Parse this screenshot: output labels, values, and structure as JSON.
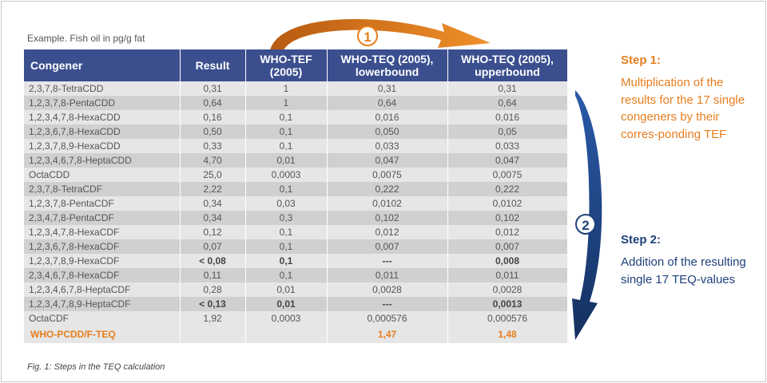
{
  "caption_top": "Example. Fish oil in pg/g fat",
  "table": {
    "headers": [
      "Congener",
      "Result",
      "WHO-TEF\n(2005)",
      "WHO-TEQ (2005),\nlowerbound",
      "WHO-TEQ (2005),\nupperbound"
    ],
    "rows": [
      {
        "congener": "2,3,7,8-TetraCDD",
        "result": "0,31",
        "tef": "1",
        "lower": "0,31",
        "upper": "0,31",
        "bold": false
      },
      {
        "congener": "1,2,3,7,8-PentaCDD",
        "result": "0,64",
        "tef": "1",
        "lower": "0,64",
        "upper": "0,64",
        "bold": false
      },
      {
        "congener": "1,2,3,4,7,8-HexaCDD",
        "result": "0,16",
        "tef": "0,1",
        "lower": "0,016",
        "upper": "0,016",
        "bold": false
      },
      {
        "congener": "1,2,3,6,7,8-HexaCDD",
        "result": "0,50",
        "tef": "0,1",
        "lower": "0,050",
        "upper": "0,05",
        "bold": false
      },
      {
        "congener": "1,2,3,7,8,9-HexaCDD",
        "result": "0,33",
        "tef": "0,1",
        "lower": "0,033",
        "upper": "0,033",
        "bold": false
      },
      {
        "congener": "1,2,3,4,6,7,8-HeptaCDD",
        "result": "4,70",
        "tef": "0,01",
        "lower": "0,047",
        "upper": "0,047",
        "bold": false
      },
      {
        "congener": "OctaCDD",
        "result": "25,0",
        "tef": "0,0003",
        "lower": "0,0075",
        "upper": "0,0075",
        "bold": false
      },
      {
        "congener": "2,3,7,8-TetraCDF",
        "result": "2,22",
        "tef": "0,1",
        "lower": "0,222",
        "upper": "0,222",
        "bold": false
      },
      {
        "congener": "1,2,3,7,8-PentaCDF",
        "result": "0,34",
        "tef": "0,03",
        "lower": "0,0102",
        "upper": "0,0102",
        "bold": false
      },
      {
        "congener": "2,3,4,7,8-PentaCDF",
        "result": "0,34",
        "tef": "0,3",
        "lower": "0,102",
        "upper": "0,102",
        "bold": false
      },
      {
        "congener": "1,2,3,4,7,8-HexaCDF",
        "result": "0,12",
        "tef": "0,1",
        "lower": "0,012",
        "upper": "0,012",
        "bold": false
      },
      {
        "congener": "1,2,3,6,7,8-HexaCDF",
        "result": "0,07",
        "tef": "0,1",
        "lower": "0,007",
        "upper": "0,007",
        "bold": false
      },
      {
        "congener": "1,2,3,7,8,9-HexaCDF",
        "result": "< 0,08",
        "tef": "0,1",
        "lower": "---",
        "upper": "0,008",
        "bold": true
      },
      {
        "congener": "2,3,4,6,7,8-HexaCDF",
        "result": "0,11",
        "tef": "0,1",
        "lower": "0,011",
        "upper": "0,011",
        "bold": false
      },
      {
        "congener": "1,2,3,4,6,7,8-HeptaCDF",
        "result": "0,28",
        "tef": "0,01",
        "lower": "0,0028",
        "upper": "0,0028",
        "bold": false
      },
      {
        "congener": "1,2,3,4,7,8,9-HeptaCDF",
        "result": "< 0,13",
        "tef": "0,01",
        "lower": "---",
        "upper": "0,0013",
        "bold": true
      },
      {
        "congener": "OctaCDF",
        "result": "1,92",
        "tef": "0,0003",
        "lower": "0,000576",
        "upper": "0,000576",
        "bold": false
      }
    ],
    "total": {
      "label": "WHO-PCDD/F-TEQ",
      "lower": "1,47",
      "upper": "1,48"
    }
  },
  "step1": {
    "number": "1",
    "title": "Step 1:",
    "body": "Multiplication of the results for the 17 single congeners by their corres-ponding TEF"
  },
  "step2": {
    "number": "2",
    "title": "Step 2:",
    "body": "Addition of the resulting single 17 TEQ-values"
  },
  "fig_caption": "Fig. 1: Steps in the TEQ calculation",
  "colors": {
    "header_bg": "#3b4f8f",
    "orange": "#e67e1e",
    "navy": "#20417a",
    "row_light": "#e6e6e6",
    "row_dark": "#d0d0d0"
  }
}
